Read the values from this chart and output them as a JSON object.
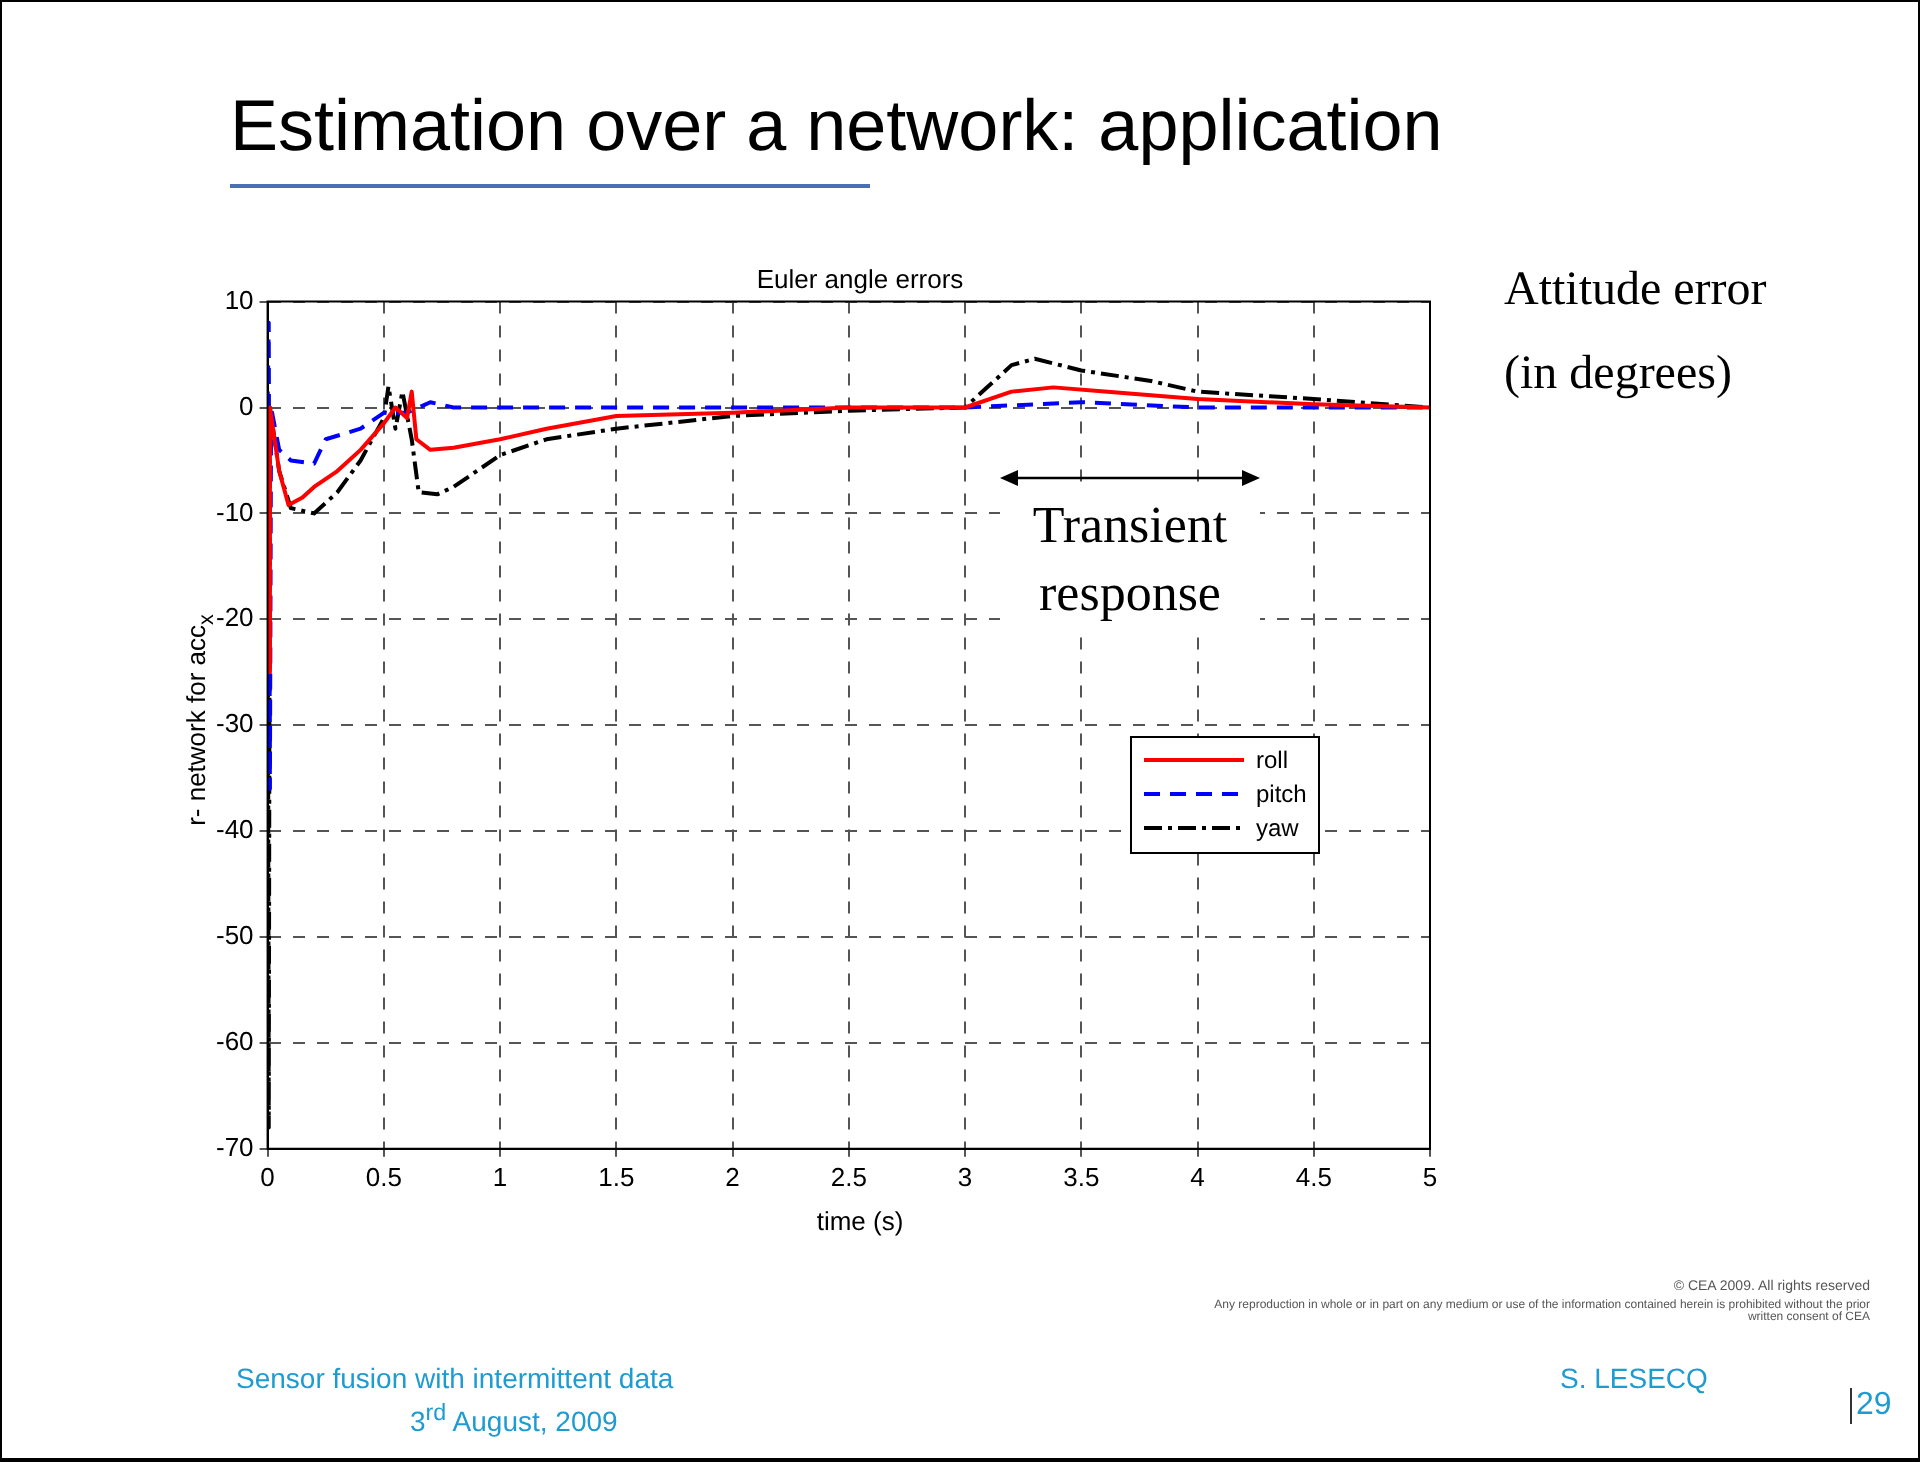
{
  "chart_data": {
    "type": "line",
    "title": "Estimation over a network: application",
    "subtitle": "Euler angle errors",
    "xlabel": "time (s)",
    "ylabel": "r- network for acc$_{x}$",
    "xlim": [
      0,
      5
    ],
    "xticks": [
      0,
      0.5,
      1,
      1.5,
      2,
      2.5,
      3,
      3.5,
      4,
      4.5,
      5
    ],
    "ylim": [
      -70,
      10
    ],
    "yticks": [
      -70,
      -60,
      -50,
      -40,
      -30,
      -20,
      -10,
      0,
      10
    ],
    "grid": true,
    "legend": "center right",
    "marker": "none",
    "series": [
      {
        "name": "roll",
        "color": "#ff0000",
        "line_style": "solid",
        "x": [
          0,
          0.005,
          0.01,
          0.05,
          0.09,
          0.15,
          0.2,
          0.3,
          0.4,
          0.5,
          0.55,
          0.6,
          0.62,
          0.64,
          0.7,
          0.8,
          1,
          1.2,
          1.5,
          2,
          2.5,
          3,
          3.2,
          3.38,
          3.6,
          4,
          4.5,
          5
        ],
        "values": [
          0,
          -25,
          0,
          -6,
          -9.2,
          -8.5,
          -7.5,
          -6,
          -4,
          -1.5,
          0,
          -1,
          1.5,
          -3,
          -4,
          -3.8,
          -3,
          -2,
          -0.8,
          -0.5,
          0,
          0,
          1.5,
          1.9,
          1.5,
          0.8,
          0.3,
          0
        ]
      },
      {
        "name": "pitch",
        "color": "#0000ff",
        "line_style": "dashed",
        "x": [
          0,
          0.005,
          0.01,
          0.015,
          0.05,
          0.1,
          0.2,
          0.25,
          0.4,
          0.5,
          0.6,
          0.7,
          0.8,
          1,
          1.5,
          2,
          2.5,
          3,
          3.5,
          4,
          4.5,
          5
        ],
        "values": [
          0,
          8,
          -36,
          0,
          -4,
          -5,
          -5.3,
          -3,
          -2,
          -0.5,
          -0.5,
          0.5,
          0,
          0,
          0,
          0,
          0,
          0,
          0.5,
          0,
          0,
          0
        ]
      },
      {
        "name": "yaw",
        "color": "#000000",
        "line_style": "dashdot",
        "x": [
          0,
          0.005,
          0.01,
          0.05,
          0.1,
          0.2,
          0.3,
          0.4,
          0.5,
          0.52,
          0.55,
          0.58,
          0.62,
          0.65,
          0.73,
          0.8,
          1,
          1.2,
          1.5,
          2,
          2.5,
          3,
          3.1,
          3.2,
          3.3,
          3.5,
          3.8,
          4,
          4.5,
          5
        ],
        "values": [
          0,
          -68,
          0,
          -6,
          -9.5,
          -10,
          -8,
          -5,
          -1,
          2,
          -2,
          1.5,
          -3,
          -8,
          -8.2,
          -7.5,
          -4.5,
          -3,
          -2,
          -0.8,
          -0.3,
          0,
          2,
          4,
          4.6,
          3.5,
          2.5,
          1.5,
          0.8,
          0
        ]
      }
    ],
    "annotations": [
      "Transient response",
      "Attitude error (in degrees)",
      "Sensor fusion with intermittent data",
      "3$^{rd}$ August, 2009",
      "S. LESECQ",
      "29",
      "© CEA 2009. All rights reserved",
      "Any reproduction in whole or in part on any medium or use of the information contained herein is prohibited without the prior written consent of CEA"
    ]
  }
}
